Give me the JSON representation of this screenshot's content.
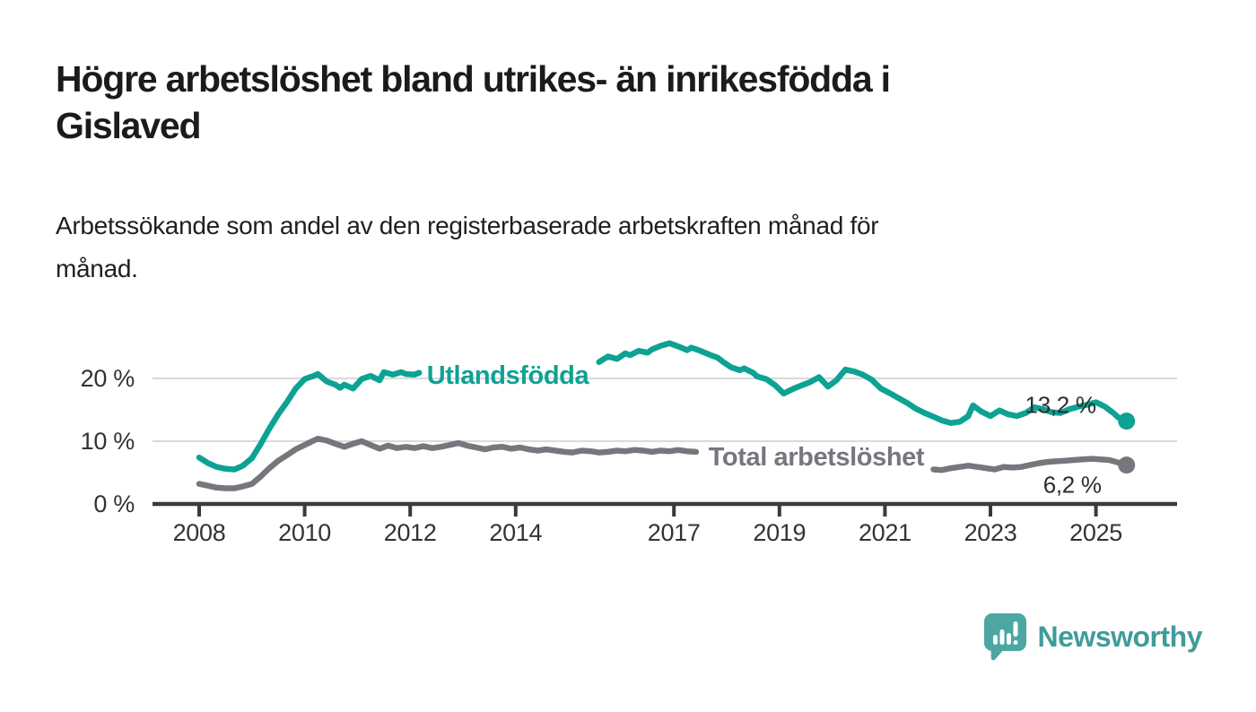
{
  "header": {
    "title_line1": "Högre arbetslöshet bland utrikes- än inrikesfödda i",
    "title_line2": "Gislaved",
    "subtitle_line1": "Arbetssökande som andel av den registerbaserade arbetskraften månad för",
    "subtitle_line2": "månad."
  },
  "footer": {
    "brand": "Newsworthy",
    "logo_icon": "speech-bubble-bar-chart-icon"
  },
  "colors": {
    "accent_teal": "#0DA294",
    "series_gray": "#76767D",
    "axis": "#3A3A3A",
    "grid": "#DADADA",
    "value_label": "#2D2D2D",
    "logo_teal": "#4CA7A2",
    "logo_text": "#3F9C99"
  },
  "chart_data": {
    "type": "line",
    "x_unit": "decimal_year_monthly",
    "x_domain": [
      2008.0,
      2025.58
    ],
    "ylim": [
      0,
      27
    ],
    "grid": "horizontal",
    "legend_position": "inline-on-line",
    "x_ticks": [
      {
        "year": 2008,
        "label": "2008"
      },
      {
        "year": 2010,
        "label": "2010"
      },
      {
        "year": 2012,
        "label": "2012"
      },
      {
        "year": 2014,
        "label": "2014"
      },
      {
        "year": 2017,
        "label": "2017"
      },
      {
        "year": 2019,
        "label": "2019"
      },
      {
        "year": 2021,
        "label": "2021"
      },
      {
        "year": 2023,
        "label": "2023"
      },
      {
        "year": 2025,
        "label": "2025"
      }
    ],
    "y_ticks": [
      {
        "value": 0,
        "label": "0 %"
      },
      {
        "value": 10,
        "label": "10 %"
      },
      {
        "value": 20,
        "label": "20 %"
      }
    ],
    "series": [
      {
        "name": "Utlandsfödda",
        "color": "#0DA294",
        "end_label": "13,2 %",
        "end_value": 13.2,
        "label_gap": [
          2012.25,
          2015.5
        ],
        "label_pos": {
          "t": 2013.85,
          "pct": 20.55
        },
        "end_label_offset": [
          -34,
          -9
        ],
        "points": [
          [
            2008.0,
            7.4
          ],
          [
            2008.17,
            6.5
          ],
          [
            2008.33,
            5.9
          ],
          [
            2008.5,
            5.6
          ],
          [
            2008.67,
            5.5
          ],
          [
            2008.83,
            6.1
          ],
          [
            2009.0,
            7.3
          ],
          [
            2009.17,
            9.6
          ],
          [
            2009.33,
            12.0
          ],
          [
            2009.5,
            14.3
          ],
          [
            2009.67,
            16.3
          ],
          [
            2009.83,
            18.4
          ],
          [
            2010.0,
            19.9
          ],
          [
            2010.17,
            20.4
          ],
          [
            2010.25,
            20.7
          ],
          [
            2010.42,
            19.5
          ],
          [
            2010.58,
            19.0
          ],
          [
            2010.67,
            18.5
          ],
          [
            2010.75,
            19.0
          ],
          [
            2010.92,
            18.4
          ],
          [
            2011.08,
            19.9
          ],
          [
            2011.25,
            20.4
          ],
          [
            2011.42,
            19.7
          ],
          [
            2011.5,
            21.0
          ],
          [
            2011.67,
            20.6
          ],
          [
            2011.83,
            21.0
          ],
          [
            2011.92,
            20.7
          ],
          [
            2012.08,
            20.6
          ],
          [
            2012.17,
            20.9
          ],
          [
            2015.58,
            22.6
          ],
          [
            2015.75,
            23.5
          ],
          [
            2015.92,
            23.1
          ],
          [
            2016.08,
            24.0
          ],
          [
            2016.17,
            23.7
          ],
          [
            2016.33,
            24.4
          ],
          [
            2016.5,
            24.1
          ],
          [
            2016.58,
            24.6
          ],
          [
            2016.75,
            25.2
          ],
          [
            2016.92,
            25.6
          ],
          [
            2017.08,
            25.1
          ],
          [
            2017.25,
            24.5
          ],
          [
            2017.33,
            24.9
          ],
          [
            2017.5,
            24.4
          ],
          [
            2017.67,
            23.8
          ],
          [
            2017.83,
            23.3
          ],
          [
            2017.92,
            22.7
          ],
          [
            2018.08,
            21.8
          ],
          [
            2018.25,
            21.3
          ],
          [
            2018.33,
            21.6
          ],
          [
            2018.5,
            20.9
          ],
          [
            2018.58,
            20.3
          ],
          [
            2018.75,
            19.9
          ],
          [
            2018.92,
            18.9
          ],
          [
            2019.08,
            17.6
          ],
          [
            2019.25,
            18.3
          ],
          [
            2019.42,
            18.9
          ],
          [
            2019.58,
            19.4
          ],
          [
            2019.75,
            20.2
          ],
          [
            2019.92,
            18.7
          ],
          [
            2020.08,
            19.7
          ],
          [
            2020.25,
            21.4
          ],
          [
            2020.42,
            21.1
          ],
          [
            2020.58,
            20.6
          ],
          [
            2020.75,
            19.8
          ],
          [
            2020.92,
            18.4
          ],
          [
            2021.08,
            17.7
          ],
          [
            2021.25,
            16.9
          ],
          [
            2021.42,
            16.1
          ],
          [
            2021.58,
            15.2
          ],
          [
            2021.75,
            14.5
          ],
          [
            2021.92,
            13.9
          ],
          [
            2022.08,
            13.3
          ],
          [
            2022.25,
            12.9
          ],
          [
            2022.42,
            13.1
          ],
          [
            2022.58,
            14.0
          ],
          [
            2022.67,
            15.7
          ],
          [
            2022.83,
            14.7
          ],
          [
            2023.0,
            14.0
          ],
          [
            2023.17,
            14.9
          ],
          [
            2023.33,
            14.3
          ],
          [
            2023.5,
            14.0
          ],
          [
            2023.67,
            14.5
          ],
          [
            2023.83,
            15.4
          ],
          [
            2024.0,
            15.1
          ],
          [
            2024.17,
            14.6
          ],
          [
            2024.33,
            14.5
          ],
          [
            2024.5,
            15.1
          ],
          [
            2024.67,
            15.5
          ],
          [
            2024.83,
            15.8
          ],
          [
            2025.0,
            16.2
          ],
          [
            2025.17,
            15.5
          ],
          [
            2025.33,
            14.5
          ],
          [
            2025.42,
            13.8
          ],
          [
            2025.58,
            13.2
          ]
        ]
      },
      {
        "name": "Total arbetslöshet",
        "color": "#76767D",
        "end_label": "6,2 %",
        "end_value": 6.2,
        "label_gap": [
          2017.5,
          2021.87
        ],
        "label_pos": {
          "t": 2019.7,
          "pct": 7.55
        },
        "end_label_offset": [
          -28,
          31
        ],
        "points": [
          [
            2008.0,
            3.2
          ],
          [
            2008.17,
            2.9
          ],
          [
            2008.33,
            2.6
          ],
          [
            2008.5,
            2.5
          ],
          [
            2008.67,
            2.5
          ],
          [
            2008.83,
            2.8
          ],
          [
            2009.0,
            3.2
          ],
          [
            2009.17,
            4.4
          ],
          [
            2009.33,
            5.7
          ],
          [
            2009.5,
            6.9
          ],
          [
            2009.67,
            7.8
          ],
          [
            2009.83,
            8.7
          ],
          [
            2010.0,
            9.4
          ],
          [
            2010.17,
            10.1
          ],
          [
            2010.25,
            10.4
          ],
          [
            2010.42,
            10.1
          ],
          [
            2010.58,
            9.6
          ],
          [
            2010.75,
            9.1
          ],
          [
            2010.92,
            9.6
          ],
          [
            2011.08,
            10.0
          ],
          [
            2011.25,
            9.4
          ],
          [
            2011.42,
            8.8
          ],
          [
            2011.58,
            9.3
          ],
          [
            2011.75,
            8.9
          ],
          [
            2011.92,
            9.1
          ],
          [
            2012.08,
            8.9
          ],
          [
            2012.25,
            9.2
          ],
          [
            2012.42,
            8.9
          ],
          [
            2012.58,
            9.1
          ],
          [
            2012.75,
            9.4
          ],
          [
            2012.92,
            9.7
          ],
          [
            2013.08,
            9.3
          ],
          [
            2013.25,
            9.0
          ],
          [
            2013.42,
            8.7
          ],
          [
            2013.58,
            9.0
          ],
          [
            2013.75,
            9.1
          ],
          [
            2013.92,
            8.8
          ],
          [
            2014.08,
            9.0
          ],
          [
            2014.25,
            8.7
          ],
          [
            2014.42,
            8.5
          ],
          [
            2014.58,
            8.7
          ],
          [
            2014.75,
            8.5
          ],
          [
            2014.92,
            8.3
          ],
          [
            2015.08,
            8.2
          ],
          [
            2015.25,
            8.5
          ],
          [
            2015.42,
            8.4
          ],
          [
            2015.58,
            8.2
          ],
          [
            2015.75,
            8.3
          ],
          [
            2015.92,
            8.5
          ],
          [
            2016.08,
            8.4
          ],
          [
            2016.25,
            8.6
          ],
          [
            2016.42,
            8.5
          ],
          [
            2016.58,
            8.3
          ],
          [
            2016.75,
            8.5
          ],
          [
            2016.92,
            8.4
          ],
          [
            2017.08,
            8.6
          ],
          [
            2017.25,
            8.4
          ],
          [
            2017.42,
            8.3
          ],
          [
            2021.92,
            5.5
          ],
          [
            2022.08,
            5.4
          ],
          [
            2022.25,
            5.7
          ],
          [
            2022.42,
            5.9
          ],
          [
            2022.58,
            6.1
          ],
          [
            2022.75,
            5.9
          ],
          [
            2022.92,
            5.7
          ],
          [
            2023.08,
            5.5
          ],
          [
            2023.25,
            5.9
          ],
          [
            2023.42,
            5.8
          ],
          [
            2023.58,
            5.9
          ],
          [
            2023.75,
            6.2
          ],
          [
            2023.92,
            6.5
          ],
          [
            2024.08,
            6.7
          ],
          [
            2024.25,
            6.8
          ],
          [
            2024.42,
            6.9
          ],
          [
            2024.58,
            7.0
          ],
          [
            2024.75,
            7.1
          ],
          [
            2024.92,
            7.2
          ],
          [
            2025.08,
            7.1
          ],
          [
            2025.25,
            7.0
          ],
          [
            2025.42,
            6.6
          ],
          [
            2025.58,
            6.2
          ]
        ]
      }
    ]
  }
}
